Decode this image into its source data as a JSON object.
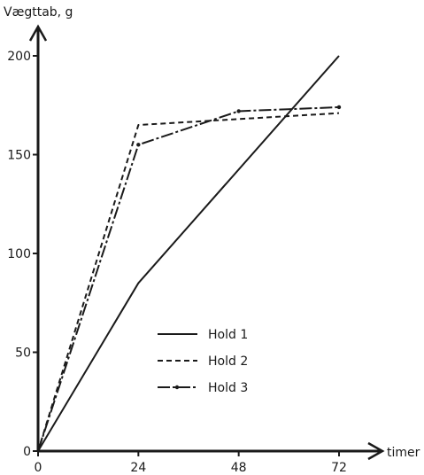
{
  "chart_data": {
    "type": "line",
    "title": "",
    "ylabel": "Vægttab, g",
    "xlabel": "timer",
    "x": [
      0,
      24,
      48,
      72
    ],
    "xlim": [
      0,
      72
    ],
    "ylim": [
      0,
      200
    ],
    "xticks": [
      0,
      24,
      48,
      72
    ],
    "yticks": [
      0,
      50,
      100,
      150,
      200
    ],
    "grid": false,
    "legend_position": "center-right",
    "series": [
      {
        "name": "Hold 1",
        "style": "solid",
        "points": [
          [
            0,
            0
          ],
          [
            24,
            85
          ],
          [
            72,
            200
          ]
        ]
      },
      {
        "name": "Hold 2",
        "style": "dashed",
        "points": [
          [
            0,
            0
          ],
          [
            24,
            165
          ],
          [
            72,
            171
          ]
        ]
      },
      {
        "name": "Hold 3",
        "style": "dash-dot",
        "points": [
          [
            0,
            0
          ],
          [
            24,
            155
          ],
          [
            48,
            172
          ],
          [
            72,
            174
          ]
        ]
      }
    ],
    "colors": {
      "ink": "#1a1a1a",
      "background": "#ffffff"
    }
  }
}
